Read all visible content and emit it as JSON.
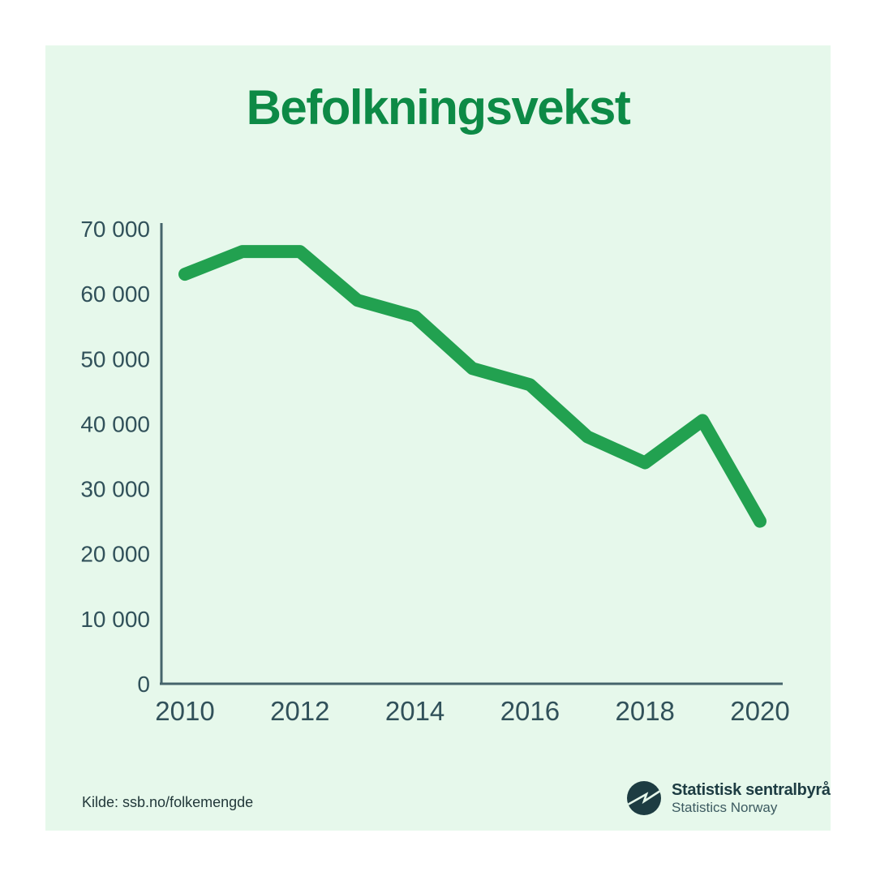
{
  "title": "Befolkningsvekst",
  "source": "Kilde: ssb.no/folkemengde",
  "logo": {
    "primary": "Statistisk sentralbyrå",
    "secondary": "Statistics Norway"
  },
  "colors": {
    "page_bg": "#ffffff",
    "card_bg": "#e6f8eb",
    "title": "#0d8a46",
    "line": "#22a150",
    "axis": "#45646b",
    "tick_text": "#31515a",
    "logo_dark": "#1d3c42"
  },
  "chart_data": {
    "type": "line",
    "title": "Befolkningsvekst",
    "xlabel": "",
    "ylabel": "",
    "x": [
      2010,
      2011,
      2012,
      2013,
      2014,
      2015,
      2016,
      2017,
      2018,
      2019,
      2020
    ],
    "series": [
      {
        "name": "Befolkningsvekst",
        "values": [
          63000,
          66500,
          66500,
          59000,
          56500,
          48500,
          46000,
          38000,
          34000,
          40500,
          25000
        ]
      }
    ],
    "xlim": [
      2010,
      2020
    ],
    "ylim": [
      0,
      70000
    ],
    "xticks": [
      2010,
      2012,
      2014,
      2016,
      2018,
      2020
    ],
    "xtick_labels": [
      "2010",
      "2012",
      "2014",
      "2016",
      "2018",
      "2020"
    ],
    "yticks": [
      0,
      10000,
      20000,
      30000,
      40000,
      50000,
      60000,
      70000
    ],
    "ytick_labels": [
      "0",
      "10 000",
      "20 000",
      "30 000",
      "40 000",
      "50 000",
      "60 000",
      "70 000"
    ],
    "grid": false,
    "legend": false,
    "line_color": "#22a150",
    "line_width": 16
  }
}
